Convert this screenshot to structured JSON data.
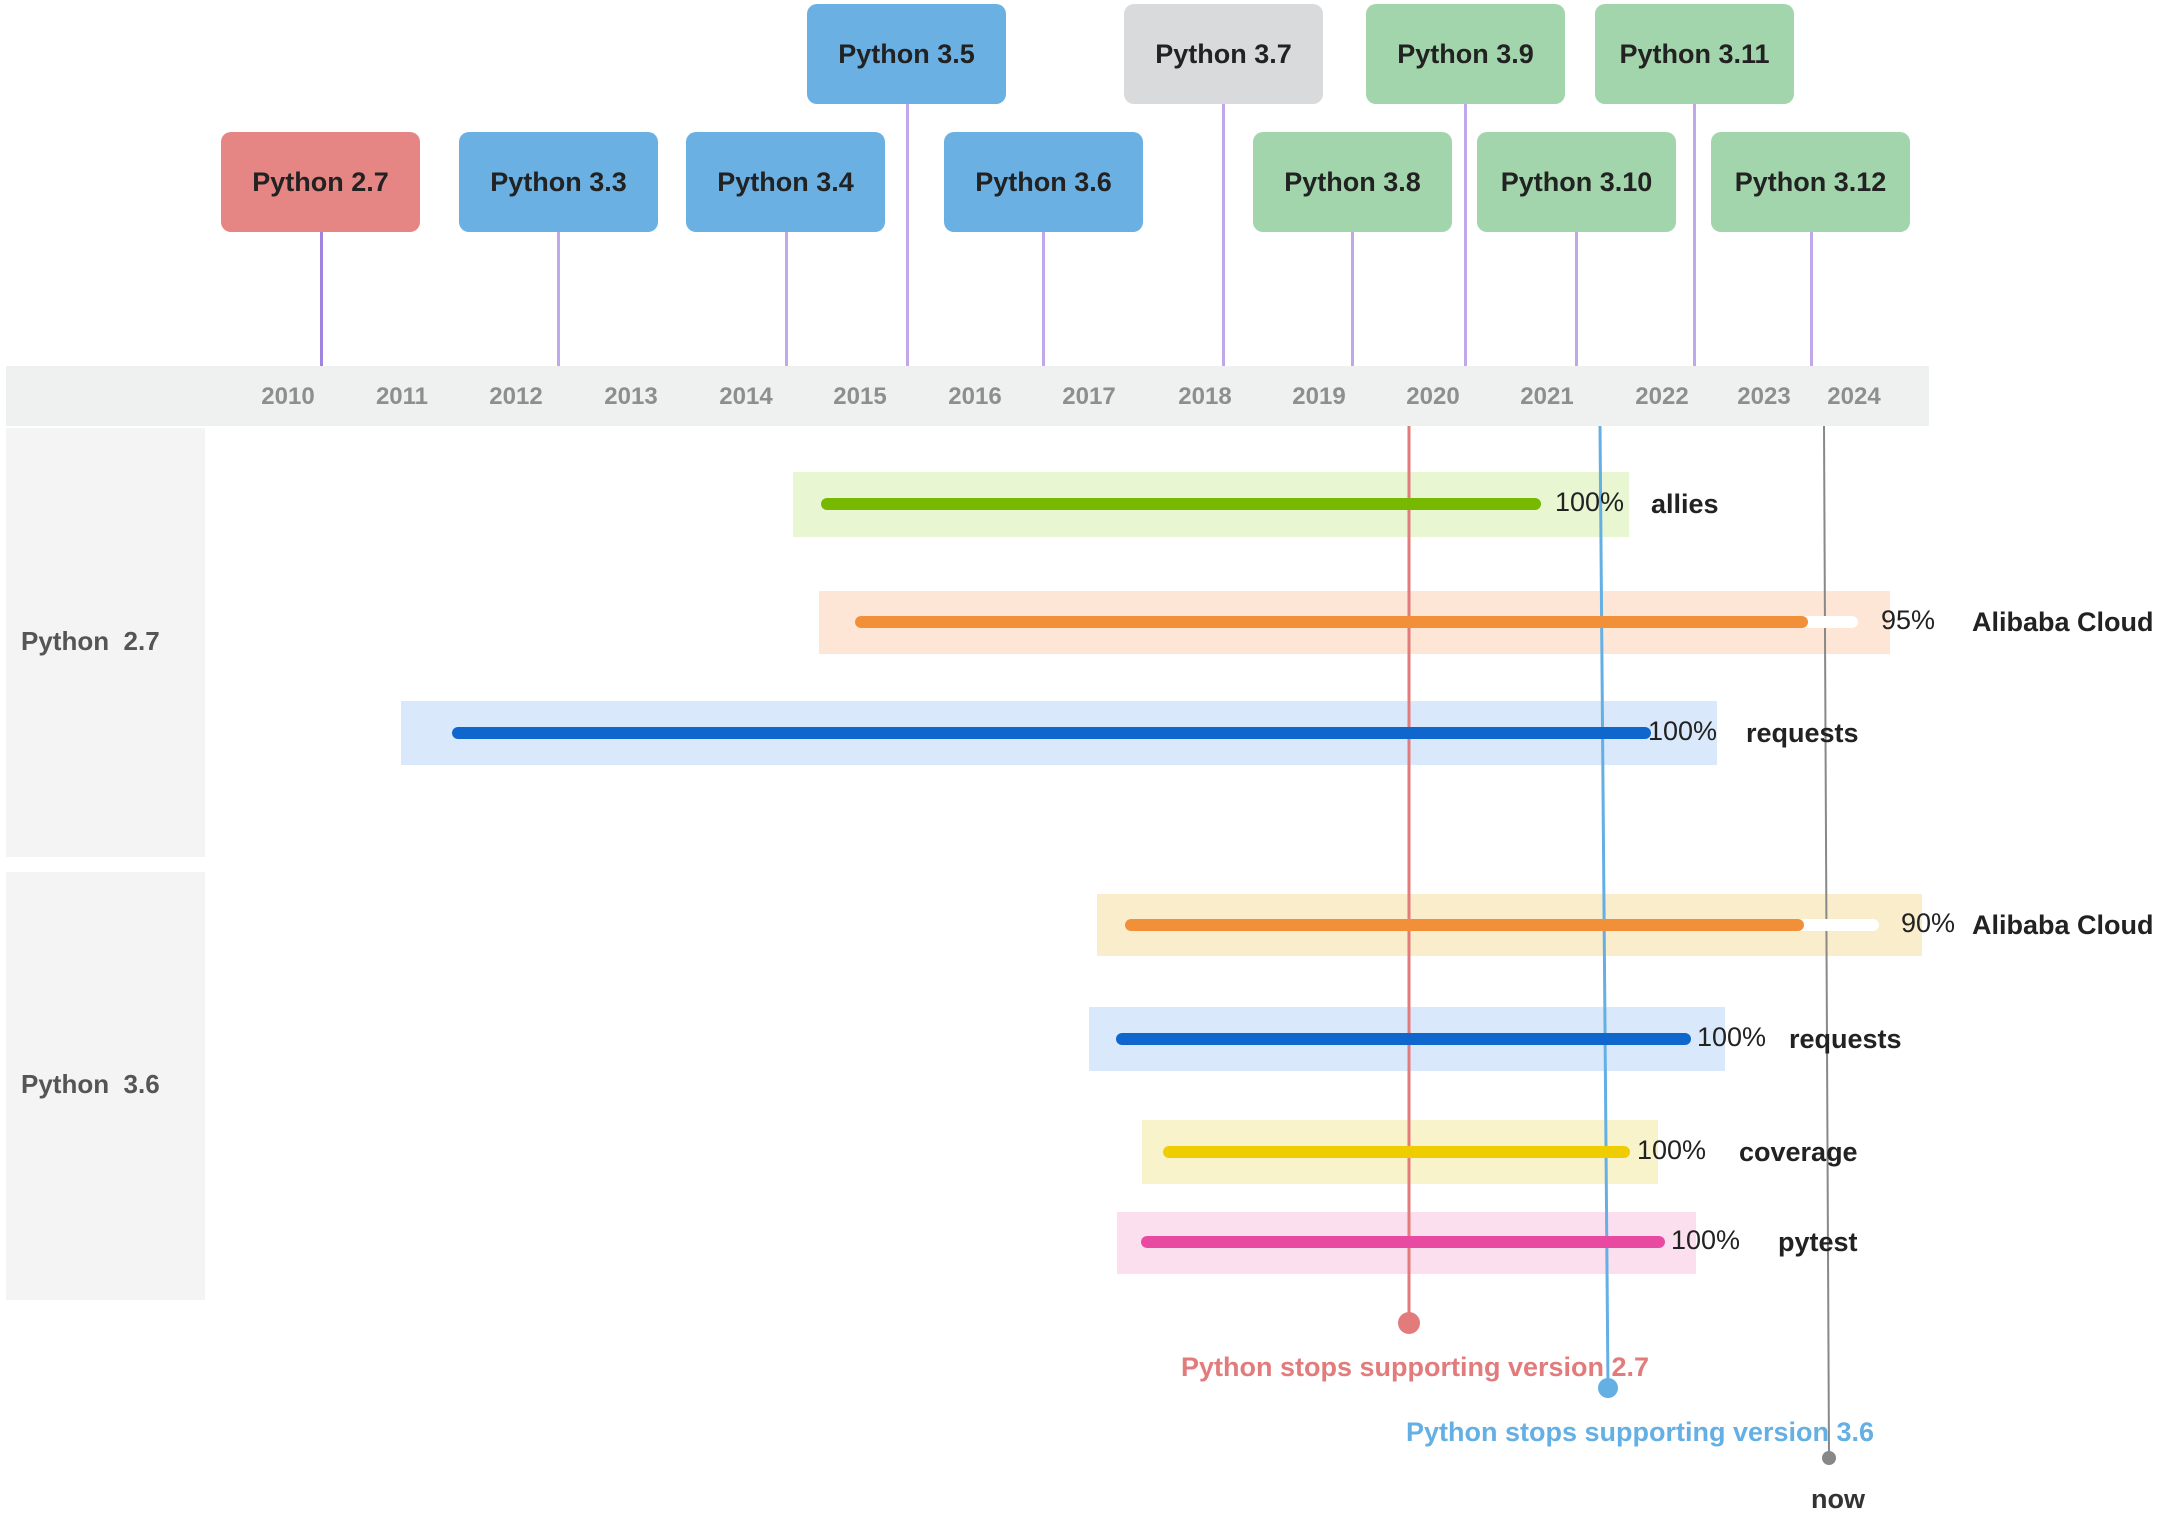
{
  "chart_data": {
    "type": "timeline-gantt",
    "years": [
      "2010",
      "2011",
      "2012",
      "2013",
      "2014",
      "2015",
      "2016",
      "2017",
      "2018",
      "2019",
      "2020",
      "2021",
      "2022",
      "2023",
      "2024"
    ],
    "releases": [
      {
        "label": "Python 2.7",
        "color": "#e58584"
      },
      {
        "label": "Python 3.3",
        "color": "#6ab0e3"
      },
      {
        "label": "Python 3.4",
        "color": "#6ab0e3"
      },
      {
        "label": "Python 3.5",
        "color": "#6ab0e3"
      },
      {
        "label": "Python 3.6",
        "color": "#6ab0e3"
      },
      {
        "label": "Python 3.7",
        "color": "#d9dadb"
      },
      {
        "label": "Python 3.8",
        "color": "#a2d5ab"
      },
      {
        "label": "Python 3.9",
        "color": "#a2d5ab"
      },
      {
        "label": "Python 3.10",
        "color": "#a2d5ab"
      },
      {
        "label": "Python 3.11",
        "color": "#a2d5ab"
      },
      {
        "label": "Python 3.12",
        "color": "#a2d5ab"
      }
    ],
    "groups": [
      {
        "label": "Python  2.7",
        "bars": [
          {
            "name": "allies",
            "percent": 100,
            "percent_label": "100%",
            "color": "#76b900",
            "bg": "#e8f6d2"
          },
          {
            "name": "Alibaba Cloud",
            "percent": 95,
            "percent_label": "95%",
            "color": "#f2903a",
            "bg": "#fde6d6"
          },
          {
            "name": "requests",
            "percent": 100,
            "percent_label": "100%",
            "color": "#0f66cc",
            "bg": "#d9e9fb"
          }
        ]
      },
      {
        "label": "Python  3.6",
        "bars": [
          {
            "name": "Alibaba Cloud",
            "percent": 90,
            "percent_label": "90%",
            "color": "#f2903a",
            "bg": "#f9edcc"
          },
          {
            "name": "requests",
            "percent": 100,
            "percent_label": "100%",
            "color": "#0f66cc",
            "bg": "#d9e9fb"
          },
          {
            "name": "coverage",
            "percent": 100,
            "percent_label": "100%",
            "color": "#efcd00",
            "bg": "#f9f3cc"
          },
          {
            "name": "pytest",
            "percent": 100,
            "percent_label": "100%",
            "color": "#e84aa2",
            "bg": "#fbdfee"
          }
        ]
      }
    ],
    "markers": [
      {
        "label": "Python stops supporting version 2.7",
        "color": "#e17b7c"
      },
      {
        "label": "Python stops supporting version 3.6",
        "color": "#64afe4"
      },
      {
        "label": "now",
        "color": "#888888",
        "label_color": "#333333"
      }
    ]
  }
}
